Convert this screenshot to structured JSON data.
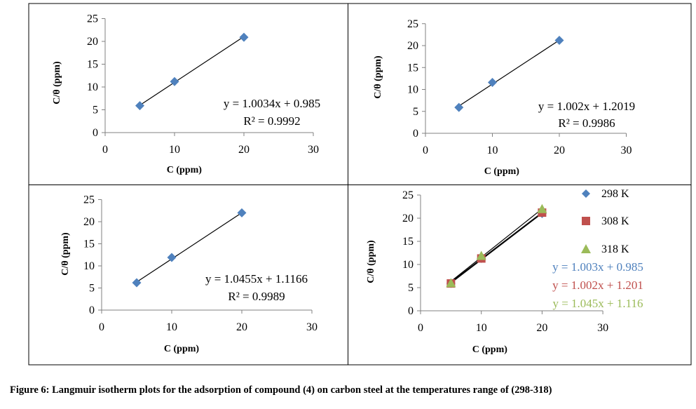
{
  "caption": "Figure 6: Langmuir isotherm plots for the adsorption of compound (4) on carbon steel at the temperatures range of (298-318)",
  "colors": {
    "s298": "#4F81BD",
    "s308": "#C0504D",
    "s318": "#9BBB59",
    "line": "#000000",
    "axis": "#808080"
  },
  "chart_data": [
    {
      "type": "scatter",
      "xlabel": "C (ppm)",
      "ylabel": "C/θ (ppm)",
      "xlim": [
        0,
        30
      ],
      "ylim": [
        0,
        25
      ],
      "xticks": [
        0,
        10,
        20,
        30
      ],
      "yticks": [
        0,
        5,
        10,
        15,
        20,
        25
      ],
      "series": [
        {
          "x": [
            5,
            10,
            20
          ],
          "y": [
            5.9,
            11.2,
            20.9
          ],
          "marker": "diamond",
          "color": "#4F81BD",
          "fit": {
            "slope": 1.0034,
            "intercept": 0.985
          }
        }
      ],
      "annotations": [
        {
          "text": "y = 1.0034x + 0.985",
          "color": "#000000"
        },
        {
          "text": "R² = 0.9992",
          "color": "#000000"
        }
      ]
    },
    {
      "type": "scatter",
      "xlabel": "C (ppm)",
      "ylabel": "C/θ (ppm)",
      "xlim": [
        0,
        30
      ],
      "ylim": [
        0,
        25
      ],
      "xticks": [
        0,
        10,
        20,
        30
      ],
      "yticks": [
        0,
        5,
        10,
        15,
        20,
        25
      ],
      "series": [
        {
          "x": [
            5,
            10,
            20
          ],
          "y": [
            5.9,
            11.6,
            21.2
          ],
          "marker": "diamond",
          "color": "#4F81BD",
          "fit": {
            "slope": 1.002,
            "intercept": 1.2019
          }
        }
      ],
      "annotations": [
        {
          "text": "y = 1.002x + 1.2019",
          "color": "#000000"
        },
        {
          "text": "R² = 0.9986",
          "color": "#000000"
        }
      ]
    },
    {
      "type": "scatter",
      "xlabel": "C (ppm)",
      "ylabel": "C/θ (ppm)",
      "xlim": [
        0,
        30
      ],
      "ylim": [
        0,
        25
      ],
      "xticks": [
        0,
        10,
        20,
        30
      ],
      "yticks": [
        0,
        5,
        10,
        15,
        20,
        25
      ],
      "series": [
        {
          "x": [
            5,
            10,
            20
          ],
          "y": [
            6.2,
            11.9,
            22.0
          ],
          "marker": "diamond",
          "color": "#4F81BD",
          "fit": {
            "slope": 1.0455,
            "intercept": 1.1166
          }
        }
      ],
      "annotations": [
        {
          "text": "y = 1.0455x + 1.1166",
          "color": "#000000"
        },
        {
          "text": "R² = 0.9989",
          "color": "#000000"
        }
      ]
    },
    {
      "type": "scatter",
      "xlabel": "C (ppm)",
      "ylabel": "C/θ (ppm)",
      "xlim": [
        0,
        30
      ],
      "ylim": [
        0,
        25
      ],
      "xticks": [
        0,
        10,
        20,
        30
      ],
      "yticks": [
        0,
        5,
        10,
        15,
        20,
        25
      ],
      "legend_position": "right",
      "series": [
        {
          "name": "298 K",
          "x": [
            5,
            10,
            20
          ],
          "y": [
            5.9,
            11.3,
            21.0
          ],
          "marker": "diamond",
          "color": "#4F81BD",
          "fit": {
            "slope": 1.003,
            "intercept": 0.985
          }
        },
        {
          "name": "308 K",
          "x": [
            5,
            10,
            20
          ],
          "y": [
            5.9,
            11.3,
            21.2
          ],
          "marker": "square",
          "color": "#C0504D",
          "fit": {
            "slope": 1.002,
            "intercept": 1.201
          }
        },
        {
          "name": "318 K",
          "x": [
            5,
            10,
            20
          ],
          "y": [
            6.0,
            11.9,
            22.0
          ],
          "marker": "triangle",
          "color": "#9BBB59",
          "fit": {
            "slope": 1.045,
            "intercept": 1.116
          }
        }
      ],
      "annotations": [
        {
          "text": "y = 1.003x + 0.985",
          "color": "#4F81BD"
        },
        {
          "text": "y = 1.002x + 1.201",
          "color": "#C0504D"
        },
        {
          "text": "y = 1.045x + 1.116",
          "color": "#9BBB59"
        }
      ]
    }
  ]
}
